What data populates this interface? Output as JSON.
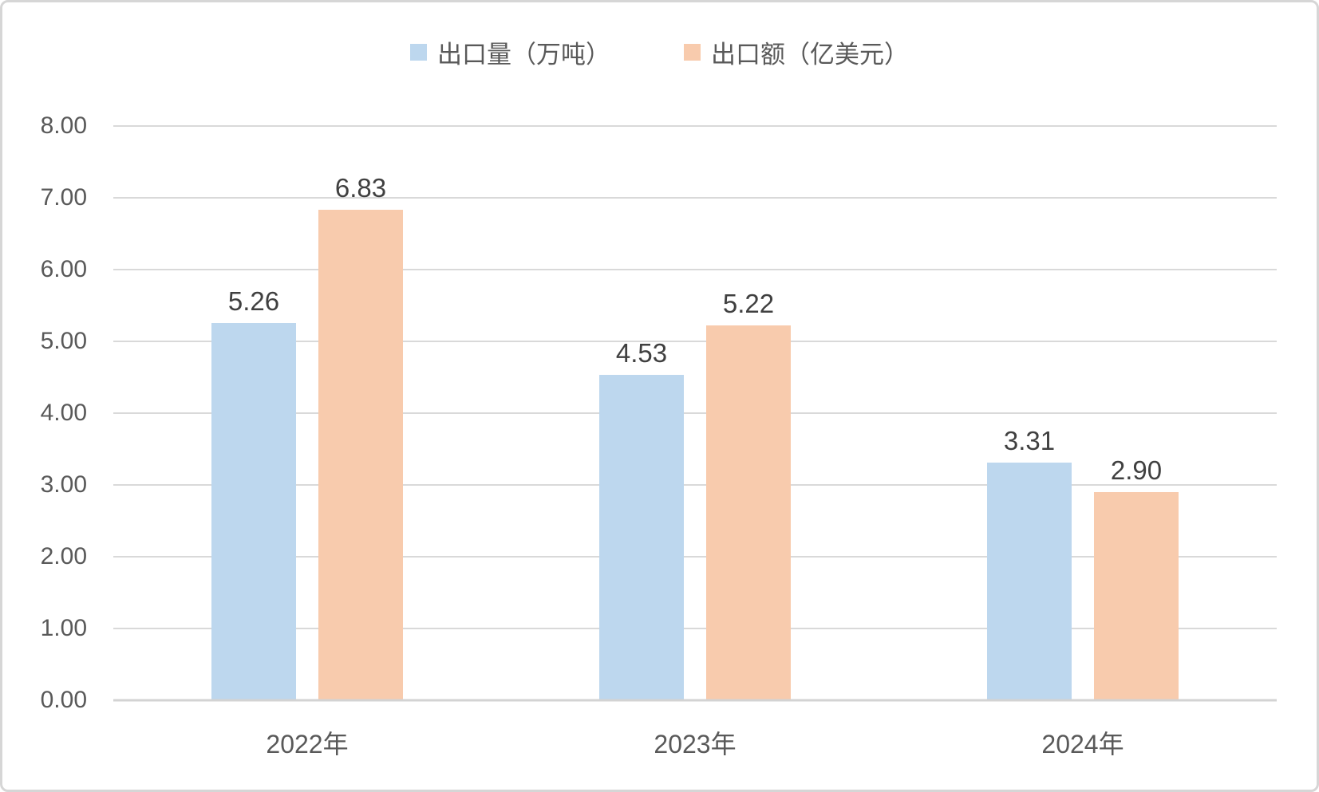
{
  "chart_data": {
    "type": "bar",
    "title": "",
    "categories": [
      "2022年",
      "2023年",
      "2024年"
    ],
    "series": [
      {
        "name": "出口量（万吨）",
        "color": "#BDD7EE",
        "values": [
          5.26,
          4.53,
          3.31
        ]
      },
      {
        "name": "出口额（亿美元）",
        "color": "#F8CBAD",
        "values": [
          6.83,
          5.22,
          2.9
        ]
      }
    ],
    "value_label_decimals": 2,
    "ylim": [
      0,
      8
    ],
    "yticks": [
      "0.00",
      "1.00",
      "2.00",
      "3.00",
      "4.00",
      "5.00",
      "6.00",
      "7.00",
      "8.00"
    ],
    "grid": "horizontal",
    "legend_position": "top"
  },
  "colors": {
    "gridline": "#d9d9d9",
    "axis_line": "#d3d3d3",
    "axis_text": "#595959",
    "value_label_text": "#404040",
    "chart_border": "#d6d6d6",
    "background": "#ffffff"
  }
}
